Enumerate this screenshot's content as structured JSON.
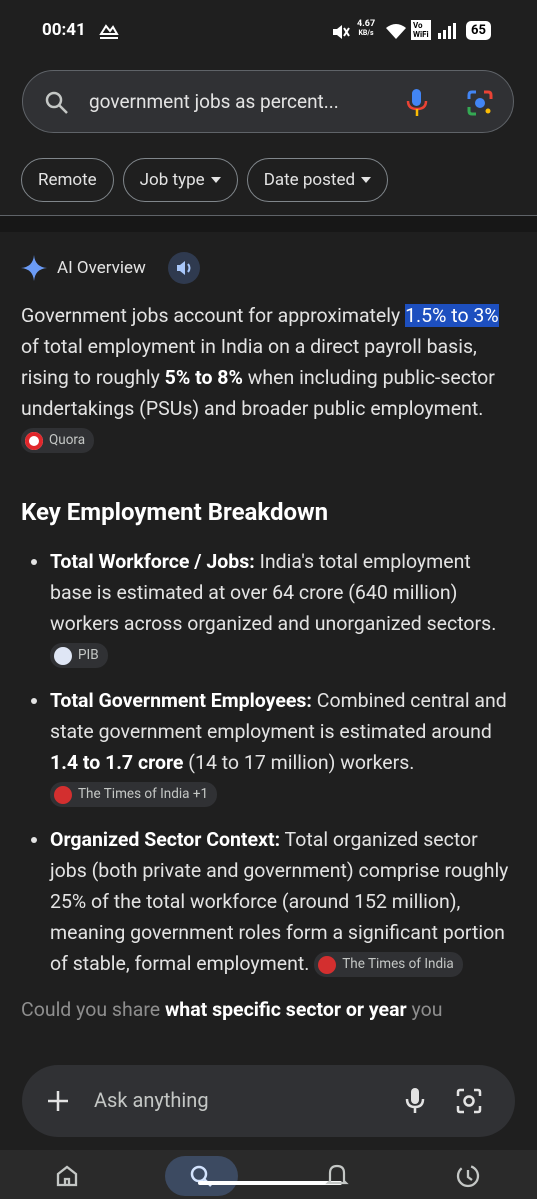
{
  "status_bar": {
    "time": "00:41",
    "net_speed": "4.67",
    "net_unit": "KB/s",
    "wifi_call": "Vo WiFi",
    "battery": "65"
  },
  "search": {
    "query": "government jobs as percent..."
  },
  "filters": [
    "Remote",
    "Job type",
    "Date posted"
  ],
  "ai_overview": {
    "label": "AI Overview",
    "summary": {
      "segments": [
        "Government jobs account for approximately ",
        {
          "text": "1.5% to 3%",
          "style": "highlight"
        },
        " of total employment in India on a direct payroll basis, rising to roughly ",
        {
          "text": "5% to 8%",
          "style": "bold"
        },
        " when including public-sector undertakings (PSUs) and broader public employment. "
      ],
      "source": "Quora"
    },
    "heading": "Key Employment Breakdown",
    "bullets": [
      {
        "label": "Total Workforce / Jobs:",
        "segments": [
          " India's total employment base is estimated at over 64 crore (640 million) workers across organized and unorganized sectors. "
        ],
        "source": "PIB"
      },
      {
        "label": "Total Government Employees:",
        "segments": [
          " Combined central and state government employment is estimated around ",
          {
            "text": "1.4 to 1.7 crore",
            "style": "bold"
          },
          " (14 to 17 million) workers. "
        ],
        "source": "The Times of India +1"
      },
      {
        "label": "Organized Sector Context:",
        "segments": [
          " Total organized sector jobs (both private and government) comprise roughly 25% of the total workforce (around 152 million), meaning government roles form a significant portion of stable, formal employment. "
        ],
        "source": "The Times of India"
      }
    ],
    "follow_up": {
      "segments": [
        "Could you share ",
        {
          "text": "what specific sector or year",
          "style": "bold"
        },
        " you"
      ]
    }
  },
  "input": {
    "placeholder": "Ask anything"
  }
}
